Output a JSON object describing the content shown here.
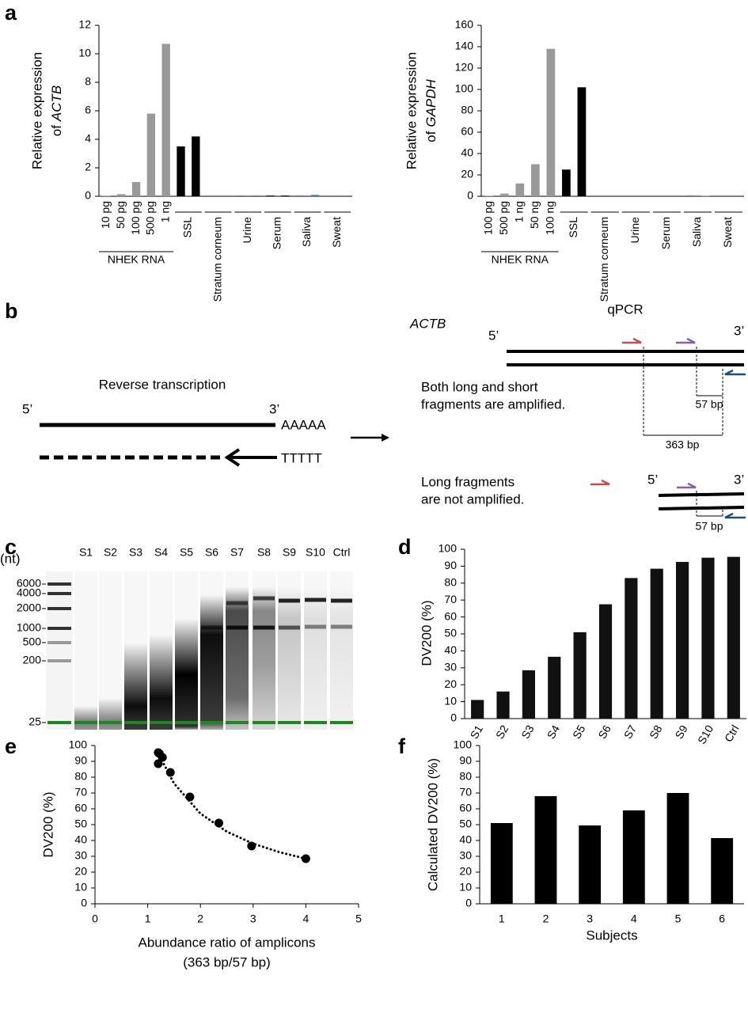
{
  "chart_data": [
    {
      "panel": "a",
      "type": "bar",
      "ylabel": [
        "Relative expression",
        "of"
      ],
      "gene": "ACTB",
      "group_label": "NHEK RNA",
      "categories": [
        "10 pg",
        "50 pg",
        "100 pg",
        "500 pg",
        "1 ng",
        "SSL",
        null,
        "Stratum corneum",
        null,
        "Urine",
        null,
        "Serum",
        null,
        "Saliva",
        null,
        "Sweat",
        null
      ],
      "values": [
        0.02,
        0.15,
        1.0,
        5.8,
        10.7,
        3.5,
        4.2,
        0.02,
        0.02,
        0.03,
        0.03,
        0.05,
        0.05,
        0.06,
        0.1,
        0.02,
        0.02
      ],
      "colors": [
        "#999999",
        "#999999",
        "#999999",
        "#999999",
        "#999999",
        "#000000",
        "#000000",
        "#000000",
        "#000000",
        "#000000",
        "#000000",
        "#000000",
        "#000000",
        "#4a7ebb",
        "#4a7ebb",
        "#000000",
        "#000000"
      ],
      "ylim": [
        0,
        12
      ],
      "yticks": [
        0,
        2,
        4,
        6,
        8,
        10,
        12
      ]
    },
    {
      "type": "bar",
      "ylabel": [
        "Relative expression",
        "of"
      ],
      "gene": "GAPDH",
      "group_label": "NHEK RNA",
      "categories": [
        "100 pg",
        "500 pg",
        "1 ng",
        "50 ng",
        "100 ng",
        "SSL",
        null,
        "Stratum corneum",
        null,
        "Urine",
        null,
        "Serum",
        null,
        "Saliva",
        null,
        "Sweat",
        null
      ],
      "values": [
        0.5,
        2.5,
        12,
        30,
        138,
        25,
        102,
        0.2,
        0.2,
        0.2,
        0.2,
        0.3,
        0.3,
        0.8,
        0.3,
        0.2,
        0.2
      ],
      "colors": [
        "#999999",
        "#999999",
        "#999999",
        "#999999",
        "#999999",
        "#000000",
        "#000000",
        "#000000",
        "#000000",
        "#000000",
        "#000000",
        "#000000",
        "#000000",
        "#4a7ebb",
        "#4a7ebb",
        "#000000",
        "#000000"
      ],
      "ylim": [
        0,
        160
      ],
      "yticks": [
        0,
        20,
        40,
        60,
        80,
        100,
        120,
        140,
        160
      ]
    },
    {
      "panel": "d",
      "type": "bar",
      "ylabel": "DV200 (%)",
      "color": "#111111",
      "categories": [
        "S1",
        "S2",
        "S3",
        "S4",
        "S5",
        "S6",
        "S7",
        "S8",
        "S9",
        "S10",
        "Ctrl"
      ],
      "values": [
        11,
        16,
        28.5,
        36.5,
        51,
        67.5,
        83,
        88.5,
        92.5,
        95,
        95.5
      ],
      "ylim": [
        0,
        100
      ],
      "yticks": [
        0,
        10,
        20,
        30,
        40,
        50,
        60,
        70,
        80,
        90,
        100
      ]
    },
    {
      "panel": "e",
      "type": "scatter",
      "ylabel": "DV200 (%)",
      "xlabel": [
        "Abundance ratio of amplicons",
        "(363 bp/57 bp)"
      ],
      "color": "#000000",
      "x": [
        1.2,
        1.22,
        1.28,
        1.2,
        1.43,
        1.8,
        2.35,
        2.97,
        4.0
      ],
      "y": [
        95.5,
        95,
        92.5,
        88.5,
        83,
        67.5,
        51,
        36.5,
        28.5
      ],
      "fit": {
        "x": [
          1.2,
          1.5,
          2,
          2.5,
          3,
          3.5,
          4
        ],
        "y": [
          95,
          76,
          57,
          45.6,
          38,
          32.6,
          28.5
        ]
      },
      "xlim": [
        0,
        5
      ],
      "xticks": [
        0,
        1,
        2,
        3,
        4,
        5
      ],
      "ylim": [
        0,
        100
      ],
      "yticks": [
        0,
        10,
        20,
        30,
        40,
        50,
        60,
        70,
        80,
        90,
        100
      ]
    },
    {
      "panel": "f",
      "type": "bar",
      "ylabel": "Calculated DV200 (%)",
      "xlabel": "Subjects",
      "color": "#000000",
      "categories": [
        "1",
        "2",
        "3",
        "4",
        "5",
        "6"
      ],
      "values": [
        51,
        68,
        49.5,
        59,
        70,
        41.5
      ],
      "ylim": [
        0,
        100
      ],
      "yticks": [
        0,
        10,
        20,
        30,
        40,
        50,
        60,
        70,
        80,
        90,
        100
      ]
    }
  ],
  "diagram": {
    "panel": "b",
    "left_title": "Reverse transcription",
    "five": "5’",
    "three": "3’",
    "poly_a": "AAAAA",
    "poly_t": "TTTTT",
    "right_title": "qPCR",
    "gene": "ACTB",
    "upper_caption": [
      "Both long and short",
      "fragments are amplified."
    ],
    "lower_caption": [
      "Long fragments",
      "are not amplified."
    ],
    "short_bp": "57 bp",
    "long_bp": "363 bp"
  },
  "gel": {
    "panel": "c",
    "unit": "(nt)",
    "ladder": [
      6000,
      4000,
      2000,
      1000,
      500,
      200,
      25
    ],
    "lanes": [
      "S1",
      "S2",
      "S3",
      "S4",
      "S5",
      "S6",
      "S7",
      "S8",
      "S9",
      "S10",
      "Ctrl"
    ]
  }
}
